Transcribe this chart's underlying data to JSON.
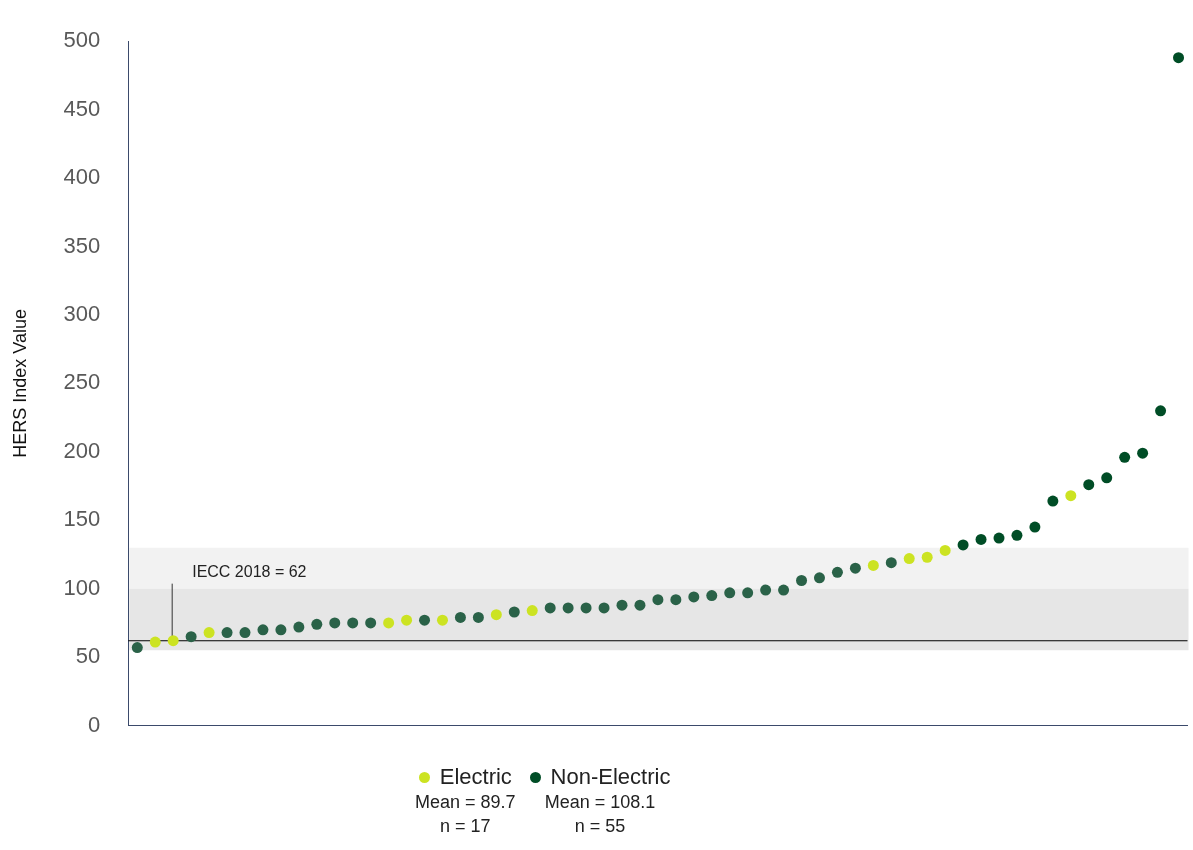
{
  "chart_data": {
    "type": "scatter",
    "ylabel": "HERS Index Value",
    "categories": [
      null,
      null,
      null,
      null,
      null,
      null,
      null,
      null,
      null,
      null,
      null,
      null,
      null,
      null,
      null,
      null,
      null,
      null,
      null,
      null,
      null,
      null,
      null,
      null,
      null,
      null,
      null,
      null,
      null,
      null,
      null,
      null,
      null,
      null,
      null,
      null,
      null,
      null,
      null,
      null,
      null,
      null,
      null,
      null,
      null,
      null,
      null,
      null,
      null,
      null,
      null,
      null,
      null,
      null,
      null,
      null,
      null,
      null,
      null
    ],
    "series": [
      {
        "name": "Electric",
        "color": "#cce322",
        "values": [
          null,
          61,
          62,
          null,
          68,
          null,
          null,
          null,
          null,
          null,
          null,
          null,
          null,
          null,
          75,
          77,
          null,
          77,
          null,
          null,
          81,
          null,
          84,
          null,
          null,
          null,
          null,
          null,
          null,
          null,
          null,
          null,
          null,
          null,
          null,
          null,
          null,
          null,
          null,
          null,
          null,
          117,
          null,
          122,
          123,
          128,
          null,
          null,
          null,
          null,
          null,
          null,
          168,
          null,
          null,
          null,
          null,
          null,
          null
        ]
      },
      {
        "name": "Non-Electric",
        "color": "#004d26",
        "values": [
          57,
          null,
          null,
          65,
          null,
          68,
          68,
          70,
          70,
          72,
          74,
          75,
          75,
          75,
          null,
          null,
          77,
          null,
          79,
          79,
          null,
          83,
          null,
          86,
          86,
          86,
          86,
          88,
          88,
          92,
          92,
          94,
          95,
          97,
          97,
          99,
          99,
          106,
          108,
          112,
          115,
          null,
          119,
          null,
          null,
          null,
          132,
          136,
          137,
          139,
          145,
          164,
          null,
          176,
          181,
          196,
          199,
          230,
          488
        ],
        "colors": [
          "#2a6248",
          "#2a6248",
          "#2a6248",
          "#2a6248",
          "#2a6248",
          "#2a6248",
          "#2a6248",
          "#2a6248",
          "#2a6248",
          "#2a6248",
          "#2a6248",
          "#2a6248",
          "#2a6248",
          "#2a6248",
          "#2a6248",
          "#2a6248",
          "#2a6248",
          "#2a6248",
          "#2a6248",
          "#2a6248",
          "#2a6248",
          "#2a6248",
          "#2a6248",
          "#2a6248",
          "#2a6248",
          "#2a6248",
          "#2a6248",
          "#2a6248",
          "#2a6248",
          "#2a6248",
          "#2a6248",
          "#2a6248",
          "#2a6248",
          "#2a6248",
          "#2a6248",
          "#2a6248",
          "#2a6248",
          "#2a6248",
          "#2a6248",
          "#2a6248",
          "#2a6248",
          "#2a6248",
          "#2a6248",
          "#2a6248",
          "#2a6248",
          "#2a6248",
          "#004d26",
          "#004d26",
          "#004d26",
          "#004d26",
          "#004d26",
          "#004d26",
          "#004d26",
          "#004d26",
          "#004d26",
          "#004d26",
          "#004d26",
          "#004d26",
          "#004d26"
        ]
      }
    ],
    "ylim": [
      0,
      500
    ],
    "yticks": [
      0,
      50,
      100,
      150,
      200,
      250,
      300,
      350,
      400,
      450,
      500
    ],
    "grid": false,
    "legend": "bottom",
    "marker": "circle",
    "ref_lines": [
      {
        "axis": "y",
        "value": 62,
        "label": "IECC 2018 = 62",
        "color": "#000000"
      }
    ],
    "bands": [
      {
        "axis": "y",
        "from": 100,
        "to": 130,
        "color": "#f2f2f2"
      },
      {
        "axis": "y",
        "from": 55,
        "to": 100,
        "color": "#e6e6e6"
      }
    ],
    "annotations": [
      "Mean = 89.7",
      "n = 17",
      "Mean = 108.1",
      "n = 55"
    ]
  }
}
